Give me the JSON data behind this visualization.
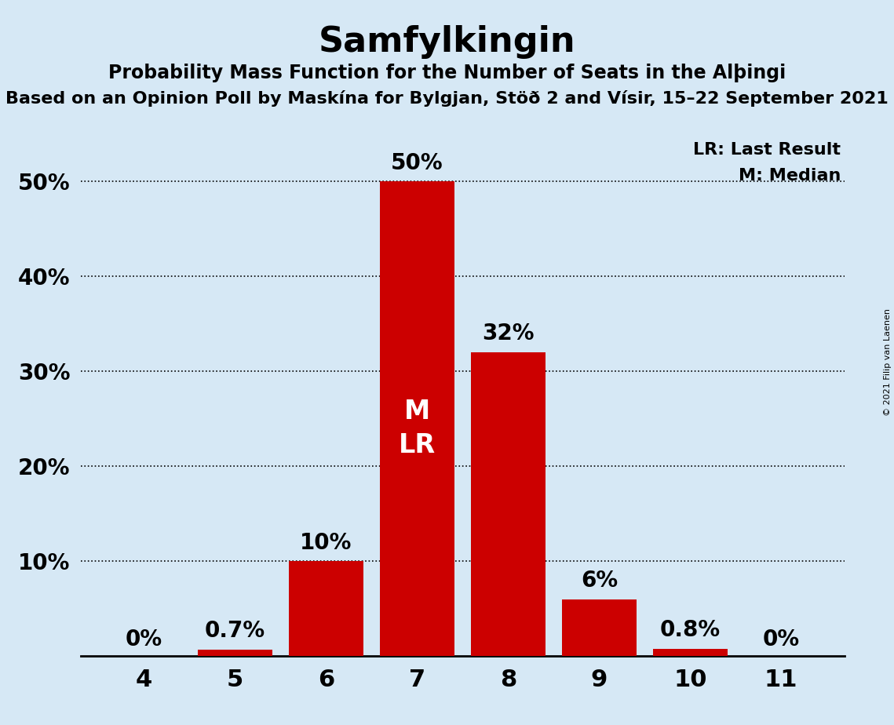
{
  "title": "Samfylkingin",
  "subtitle1": "Probability Mass Function for the Number of Seats in the Alþingi",
  "subtitle2": "Based on an Opinion Poll by Maskína for Bylgjan, Stöð 2 and Vísir, 15–22 September 2021",
  "copyright": "© 2021 Filip van Laenen",
  "seats": [
    4,
    5,
    6,
    7,
    8,
    9,
    10,
    11
  ],
  "probabilities": [
    0.0,
    0.7,
    10.0,
    50.0,
    32.0,
    6.0,
    0.8,
    0.0
  ],
  "bar_color": "#cc0000",
  "background_color": "#d6e8f5",
  "text_color": "#000000",
  "bar_labels": [
    "0%",
    "0.7%",
    "10%",
    "50%",
    "32%",
    "6%",
    "0.8%",
    "0%"
  ],
  "median_seat": 7,
  "last_result_seat": 7,
  "legend_lr": "LR: Last Result",
  "legend_m": "M: Median",
  "ylabel_ticks": [
    10,
    20,
    30,
    40,
    50
  ],
  "ylim": [
    0,
    55
  ],
  "grid_color": "#000000",
  "annotation_color": "#ffffff",
  "annotation_fontsize": 24,
  "bar_label_fontsize": 20,
  "ytick_fontsize": 20,
  "xtick_fontsize": 22,
  "title_fontsize": 32,
  "subtitle1_fontsize": 17,
  "subtitle2_fontsize": 16,
  "legend_fontsize": 16,
  "bar_width": 0.82
}
